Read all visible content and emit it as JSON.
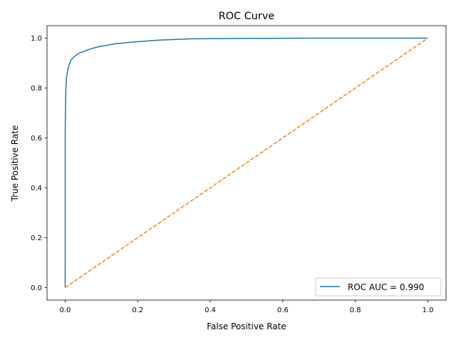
{
  "chart_data": {
    "type": "line",
    "title": "ROC Curve",
    "xlabel": "False Positive Rate",
    "ylabel": "True Positive Rate",
    "xlim": [
      -0.05,
      1.05
    ],
    "ylim": [
      -0.05,
      1.05
    ],
    "xticks": [
      "0.0",
      "0.2",
      "0.4",
      "0.6",
      "0.8",
      "1.0"
    ],
    "yticks": [
      "0.0",
      "0.2",
      "0.4",
      "0.6",
      "0.8",
      "1.0"
    ],
    "grid": false,
    "legend_position": "lower-right",
    "series": [
      {
        "name": "ROC AUC = 0.990",
        "color": "#1f77b4",
        "style": "solid",
        "x": [
          0,
          0,
          0.001,
          0.002,
          0.004,
          0.008,
          0.016,
          0.03,
          0.042,
          0.07,
          0.094,
          0.14,
          0.193,
          0.26,
          0.344,
          0.5,
          0.7,
          1.0
        ],
        "y": [
          0,
          0.6,
          0.724,
          0.8,
          0.846,
          0.88,
          0.913,
          0.932,
          0.942,
          0.957,
          0.966,
          0.978,
          0.985,
          0.992,
          0.997,
          0.999,
          1.0,
          1.0
        ]
      },
      {
        "color": "#ff7f0e",
        "style": "dashed",
        "x": [
          0,
          1
        ],
        "y": [
          0,
          1
        ]
      }
    ]
  }
}
